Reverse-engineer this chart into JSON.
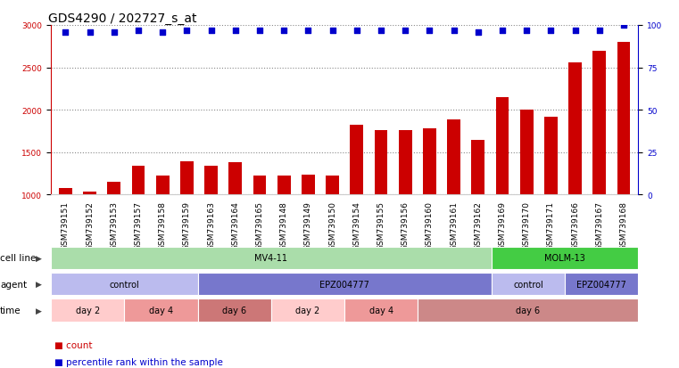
{
  "title": "GDS4290 / 202727_s_at",
  "samples": [
    "GSM739151",
    "GSM739152",
    "GSM739153",
    "GSM739157",
    "GSM739158",
    "GSM739159",
    "GSM739163",
    "GSM739164",
    "GSM739165",
    "GSM739148",
    "GSM739149",
    "GSM739150",
    "GSM739154",
    "GSM739155",
    "GSM739156",
    "GSM739160",
    "GSM739161",
    "GSM739162",
    "GSM739169",
    "GSM739170",
    "GSM739171",
    "GSM739166",
    "GSM739167",
    "GSM739168"
  ],
  "counts": [
    1080,
    1040,
    1150,
    1340,
    1220,
    1390,
    1340,
    1380,
    1230,
    1230,
    1240,
    1230,
    1820,
    1760,
    1760,
    1780,
    1890,
    1650,
    2150,
    2000,
    1920,
    2560,
    2700,
    2800
  ],
  "percentile_ranks": [
    96,
    96,
    96,
    97,
    96,
    97,
    97,
    97,
    97,
    97,
    97,
    97,
    97,
    97,
    97,
    97,
    97,
    96,
    97,
    97,
    97,
    97,
    97,
    100
  ],
  "bar_color": "#cc0000",
  "dot_color": "#0000cc",
  "ylim_left": [
    1000,
    3000
  ],
  "yticks_left": [
    1000,
    1500,
    2000,
    2500,
    3000
  ],
  "ylim_right": [
    0,
    100
  ],
  "yticks_right": [
    0,
    25,
    50,
    75,
    100
  ],
  "cell_line_regions": [
    {
      "label": "MV4-11",
      "start": 0,
      "end": 18,
      "color": "#aaddaa"
    },
    {
      "label": "MOLM-13",
      "start": 18,
      "end": 24,
      "color": "#44cc44"
    }
  ],
  "agent_regions": [
    {
      "label": "control",
      "start": 0,
      "end": 6,
      "color": "#bbbbee"
    },
    {
      "label": "EPZ004777",
      "start": 6,
      "end": 18,
      "color": "#7777cc"
    },
    {
      "label": "control",
      "start": 18,
      "end": 21,
      "color": "#bbbbee"
    },
    {
      "label": "EPZ004777",
      "start": 21,
      "end": 24,
      "color": "#7777cc"
    }
  ],
  "time_regions": [
    {
      "label": "day 2",
      "start": 0,
      "end": 3,
      "color": "#ffcccc"
    },
    {
      "label": "day 4",
      "start": 3,
      "end": 6,
      "color": "#ee9999"
    },
    {
      "label": "day 6",
      "start": 6,
      "end": 9,
      "color": "#cc7777"
    },
    {
      "label": "day 2",
      "start": 9,
      "end": 12,
      "color": "#ffcccc"
    },
    {
      "label": "day 4",
      "start": 12,
      "end": 15,
      "color": "#ee9999"
    },
    {
      "label": "day 6",
      "start": 15,
      "end": 24,
      "color": "#cc8888"
    }
  ],
  "row_labels": [
    "cell line",
    "agent",
    "time"
  ],
  "legend_items": [
    {
      "color": "#cc0000",
      "label": "count"
    },
    {
      "color": "#0000cc",
      "label": "percentile rank within the sample"
    }
  ],
  "background_color": "#ffffff",
  "grid_color": "#888888",
  "title_fontsize": 10,
  "tick_fontsize": 6.5,
  "label_fontsize": 8
}
